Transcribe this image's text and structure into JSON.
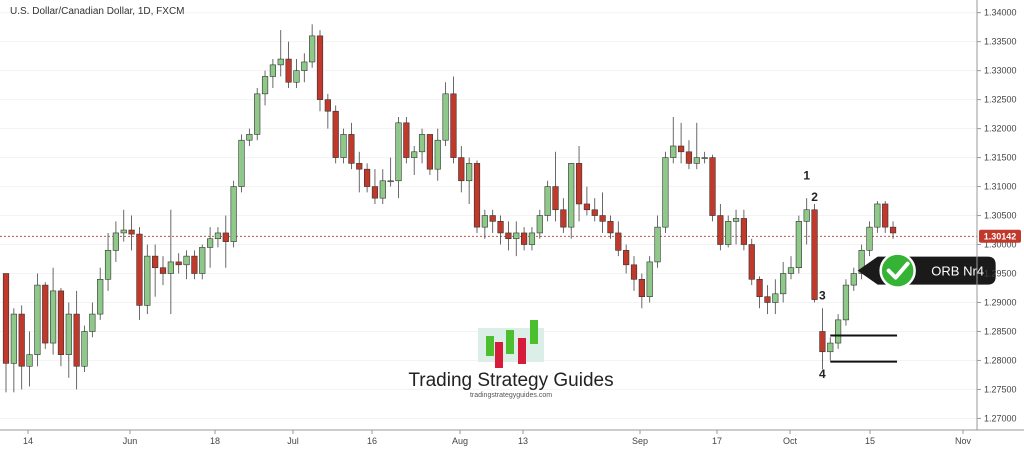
{
  "chart_data": {
    "type": "candlestick",
    "title": "U.S. Dollar/Canadian Dollar, 1D, FXCM",
    "y_ticks": [
      "1.34000",
      "1.33500",
      "1.33000",
      "1.32500",
      "1.32000",
      "1.31500",
      "1.31000",
      "1.30500",
      "1.30000",
      "1.29500",
      "1.29000",
      "1.28500",
      "1.28000",
      "1.27500",
      "1.27000"
    ],
    "ylim": [
      1.268,
      1.3415
    ],
    "x_ticks": [
      "14",
      "Jun",
      "18",
      "Jul",
      "16",
      "Aug",
      "13",
      "Sep",
      "17",
      "Oct",
      "15",
      "Nov"
    ],
    "current_price": "1.30142",
    "current_price_value": 1.30142,
    "colors": {
      "up": "#8fc98a",
      "down": "#c0392b",
      "price_line": "#c0392b",
      "badge": "#1a1a1a",
      "check": "#35b335"
    },
    "candles": [
      [
        1.295,
        1.295,
        1.2745,
        1.2795
      ],
      [
        1.2795,
        1.289,
        1.2745,
        1.288
      ],
      [
        1.288,
        1.2895,
        1.275,
        1.279
      ],
      [
        1.279,
        1.285,
        1.2755,
        1.281
      ],
      [
        1.281,
        1.295,
        1.279,
        1.293
      ],
      [
        1.293,
        1.2935,
        1.282,
        1.283
      ],
      [
        1.283,
        1.296,
        1.281,
        1.292
      ],
      [
        1.292,
        1.2925,
        1.279,
        1.281
      ],
      [
        1.281,
        1.29,
        1.277,
        1.288
      ],
      [
        1.288,
        1.292,
        1.275,
        1.279
      ],
      [
        1.279,
        1.286,
        1.278,
        1.285
      ],
      [
        1.285,
        1.29,
        1.284,
        1.288
      ],
      [
        1.288,
        1.296,
        1.287,
        1.294
      ],
      [
        1.294,
        1.302,
        1.292,
        1.299
      ],
      [
        1.299,
        1.304,
        1.297,
        1.302
      ],
      [
        1.302,
        1.306,
        1.3005,
        1.3025
      ],
      [
        1.3025,
        1.305,
        1.299,
        1.3018
      ],
      [
        1.3018,
        1.303,
        1.287,
        1.2895
      ],
      [
        1.2895,
        1.3,
        1.288,
        1.298
      ],
      [
        1.298,
        1.3,
        1.291,
        1.296
      ],
      [
        1.296,
        1.298,
        1.293,
        1.295
      ],
      [
        1.295,
        1.306,
        1.288,
        1.297
      ],
      [
        1.297,
        1.2985,
        1.295,
        1.2965
      ],
      [
        1.2965,
        1.299,
        1.294,
        1.298
      ],
      [
        1.298,
        1.299,
        1.294,
        1.295
      ],
      [
        1.295,
        1.3,
        1.294,
        1.2995
      ],
      [
        1.2995,
        1.303,
        1.296,
        1.301
      ],
      [
        1.301,
        1.303,
        1.2995,
        1.302
      ],
      [
        1.302,
        1.305,
        1.296,
        1.3005
      ],
      [
        1.3005,
        1.311,
        1.2995,
        1.31
      ],
      [
        1.31,
        1.319,
        1.309,
        1.318
      ],
      [
        1.318,
        1.32,
        1.317,
        1.319
      ],
      [
        1.319,
        1.327,
        1.318,
        1.326
      ],
      [
        1.326,
        1.33,
        1.324,
        1.329
      ],
      [
        1.329,
        1.332,
        1.327,
        1.331
      ],
      [
        1.331,
        1.337,
        1.329,
        1.332
      ],
      [
        1.332,
        1.335,
        1.327,
        1.328
      ],
      [
        1.328,
        1.332,
        1.327,
        1.33
      ],
      [
        1.33,
        1.333,
        1.328,
        1.3315
      ],
      [
        1.3315,
        1.338,
        1.3305,
        1.336
      ],
      [
        1.336,
        1.337,
        1.323,
        1.325
      ],
      [
        1.325,
        1.326,
        1.32,
        1.323
      ],
      [
        1.323,
        1.324,
        1.314,
        1.315
      ],
      [
        1.315,
        1.32,
        1.314,
        1.319
      ],
      [
        1.319,
        1.321,
        1.313,
        1.314
      ],
      [
        1.314,
        1.316,
        1.309,
        1.313
      ],
      [
        1.313,
        1.314,
        1.309,
        1.31
      ],
      [
        1.31,
        1.313,
        1.307,
        1.308
      ],
      [
        1.308,
        1.313,
        1.307,
        1.311
      ],
      [
        1.311,
        1.315,
        1.31,
        1.311
      ],
      [
        1.311,
        1.322,
        1.308,
        1.321
      ],
      [
        1.321,
        1.322,
        1.314,
        1.315
      ],
      [
        1.315,
        1.317,
        1.312,
        1.316
      ],
      [
        1.316,
        1.32,
        1.314,
        1.319
      ],
      [
        1.319,
        1.319,
        1.312,
        1.313
      ],
      [
        1.313,
        1.32,
        1.311,
        1.318
      ],
      [
        1.318,
        1.328,
        1.317,
        1.326
      ],
      [
        1.326,
        1.329,
        1.314,
        1.315
      ],
      [
        1.315,
        1.317,
        1.309,
        1.311
      ],
      [
        1.311,
        1.315,
        1.307,
        1.314
      ],
      [
        1.314,
        1.3145,
        1.302,
        1.303
      ],
      [
        1.303,
        1.306,
        1.301,
        1.305
      ],
      [
        1.305,
        1.306,
        1.302,
        1.304
      ],
      [
        1.304,
        1.305,
        1.3,
        1.302
      ],
      [
        1.302,
        1.304,
        1.299,
        1.301
      ],
      [
        1.301,
        1.304,
        1.298,
        1.302
      ],
      [
        1.302,
        1.303,
        1.299,
        1.3
      ],
      [
        1.3,
        1.303,
        1.299,
        1.302
      ],
      [
        1.302,
        1.306,
        1.301,
        1.305
      ],
      [
        1.305,
        1.311,
        1.304,
        1.31
      ],
      [
        1.31,
        1.316,
        1.304,
        1.306
      ],
      [
        1.306,
        1.308,
        1.302,
        1.303
      ],
      [
        1.303,
        1.314,
        1.301,
        1.314
      ],
      [
        1.314,
        1.317,
        1.304,
        1.307
      ],
      [
        1.307,
        1.31,
        1.305,
        1.306
      ],
      [
        1.306,
        1.308,
        1.304,
        1.305
      ],
      [
        1.305,
        1.309,
        1.302,
        1.304
      ],
      [
        1.304,
        1.305,
        1.301,
        1.302
      ],
      [
        1.302,
        1.304,
        1.298,
        1.299
      ],
      [
        1.299,
        1.3,
        1.295,
        1.2965
      ],
      [
        1.2965,
        1.298,
        1.292,
        1.294
      ],
      [
        1.294,
        1.295,
        1.289,
        1.291
      ],
      [
        1.291,
        1.298,
        1.29,
        1.297
      ],
      [
        1.297,
        1.305,
        1.296,
        1.303
      ],
      [
        1.303,
        1.316,
        1.302,
        1.315
      ],
      [
        1.315,
        1.322,
        1.314,
        1.317
      ],
      [
        1.317,
        1.321,
        1.314,
        1.316
      ],
      [
        1.316,
        1.318,
        1.313,
        1.314
      ],
      [
        1.314,
        1.321,
        1.313,
        1.315
      ],
      [
        1.315,
        1.316,
        1.314,
        1.315
      ],
      [
        1.315,
        1.3155,
        1.304,
        1.305
      ],
      [
        1.305,
        1.307,
        1.299,
        1.3
      ],
      [
        1.3,
        1.305,
        1.2995,
        1.304
      ],
      [
        1.304,
        1.306,
        1.3,
        1.3045
      ],
      [
        1.3045,
        1.306,
        1.299,
        1.3
      ],
      [
        1.3,
        1.301,
        1.293,
        1.294
      ],
      [
        1.294,
        1.2945,
        1.289,
        1.291
      ],
      [
        1.291,
        1.293,
        1.288,
        1.29
      ],
      [
        1.29,
        1.294,
        1.288,
        1.2915
      ],
      [
        1.2915,
        1.297,
        1.29,
        1.295
      ],
      [
        1.295,
        1.298,
        1.294,
        1.296
      ],
      [
        1.296,
        1.305,
        1.295,
        1.304
      ],
      [
        1.304,
        1.308,
        1.3,
        1.306
      ],
      [
        1.306,
        1.307,
        1.29,
        1.2905
      ],
      [
        1.285,
        1.289,
        1.2785,
        1.2815
      ],
      [
        1.2815,
        1.284,
        1.28,
        1.283
      ],
      [
        1.283,
        1.288,
        1.282,
        1.287
      ],
      [
        1.287,
        1.294,
        1.286,
        1.293
      ],
      [
        1.293,
        1.296,
        1.292,
        1.295
      ],
      [
        1.295,
        1.3,
        1.294,
        1.299
      ],
      [
        1.299,
        1.304,
        1.298,
        1.303
      ],
      [
        1.303,
        1.3075,
        1.302,
        1.307
      ],
      [
        1.307,
        1.3075,
        1.302,
        1.303
      ],
      [
        1.303,
        1.304,
        1.301,
        1.302
      ]
    ],
    "annotations": [
      {
        "text": "1",
        "candle": 102,
        "price": 1.3112
      },
      {
        "text": "2",
        "candle": 103,
        "price": 1.3075
      },
      {
        "text": "3",
        "candle": 104,
        "price": 1.2905
      },
      {
        "text": "4",
        "candle": 104,
        "price": 1.277
      }
    ],
    "range_lines": [
      {
        "price": 1.2843,
        "from_candle": 105,
        "to_candle": 113
      },
      {
        "price": 1.2798,
        "from_candle": 105,
        "to_candle": 113
      }
    ],
    "badge": {
      "label": "ORB Nr4",
      "candle": 109,
      "price": 1.2955
    }
  },
  "watermark": {
    "name": "Trading Strategy Guides",
    "url": "tradingstrategyguides.com"
  }
}
